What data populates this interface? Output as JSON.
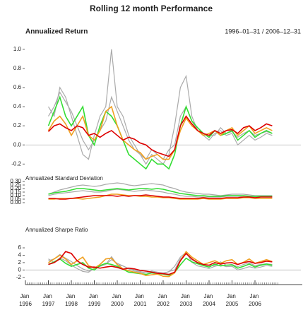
{
  "title": "Rolling 12 month Performance",
  "date_range": "1996–01–31 / 2006–12–31",
  "chart_data": [
    {
      "type": "line",
      "title": "Annualized Return",
      "ylim": [
        -0.27,
        1.05
      ],
      "yticks": [
        -0.2,
        {
          "value": 0,
          "label": "0.0"
        },
        0.2,
        0.4,
        0.6,
        0.8,
        {
          "value": 1,
          "label": "1.0"
        }
      ],
      "reference_line": 0,
      "series": [
        {
          "color": "#aaaaaa",
          "values": [
            null,
            null,
            null,
            null,
            0.4,
            0.3,
            0.6,
            0.5,
            0.3,
            0.1,
            -0.1,
            -0.15,
            0.1,
            0.3,
            0.4,
            1.0,
            0.4,
            0.3,
            0.1,
            0.0,
            -0.1,
            -0.2,
            -0.1,
            -0.15,
            -0.2,
            -0.1,
            0.2,
            0.6,
            0.72,
            0.3,
            0.15,
            0.1,
            0.05,
            0.12,
            0.15,
            0.1,
            0.12,
            0.0,
            0.05,
            0.1,
            0.05,
            0.08,
            0.12,
            0.1
          ]
        },
        {
          "color": "#aaaaaa",
          "values": [
            null,
            null,
            null,
            null,
            0.3,
            0.4,
            0.55,
            0.45,
            0.35,
            0.2,
            0.05,
            -0.05,
            0.05,
            0.15,
            0.25,
            0.5,
            0.35,
            0.2,
            0.05,
            -0.05,
            -0.1,
            -0.15,
            -0.05,
            -0.1,
            -0.15,
            -0.05,
            0.0,
            0.3,
            0.4,
            0.25,
            0.15,
            0.12,
            0.1,
            0.1,
            0.18,
            0.12,
            0.14,
            0.08,
            0.12,
            0.15,
            0.1,
            0.12,
            0.14,
            0.12
          ]
        },
        {
          "color": "#33dd33",
          "values": [
            null,
            null,
            null,
            null,
            0.2,
            0.35,
            0.5,
            0.3,
            0.2,
            0.3,
            0.4,
            0.1,
            0.0,
            0.2,
            0.35,
            0.3,
            0.2,
            0.05,
            -0.1,
            -0.15,
            -0.2,
            -0.25,
            -0.15,
            -0.2,
            -0.2,
            -0.25,
            -0.1,
            0.2,
            0.4,
            0.25,
            0.18,
            0.12,
            0.08,
            0.15,
            0.1,
            0.12,
            0.15,
            0.05,
            0.1,
            0.15,
            0.08,
            0.12,
            0.15,
            0.12
          ]
        },
        {
          "color": "#f0a020",
          "values": [
            null,
            null,
            null,
            null,
            0.15,
            0.25,
            0.3,
            0.22,
            0.1,
            0.2,
            0.3,
            0.1,
            0.05,
            0.15,
            0.35,
            0.4,
            0.2,
            0.05,
            0.0,
            -0.05,
            -0.08,
            -0.15,
            -0.12,
            -0.1,
            -0.15,
            -0.15,
            -0.05,
            0.15,
            0.28,
            0.2,
            0.15,
            0.1,
            0.12,
            0.15,
            0.1,
            0.15,
            0.18,
            0.1,
            0.15,
            0.2,
            0.12,
            0.15,
            0.18,
            0.15
          ]
        },
        {
          "color": "#dd0000",
          "values": [
            null,
            null,
            null,
            null,
            0.14,
            0.2,
            0.22,
            0.18,
            0.15,
            0.2,
            0.18,
            0.1,
            0.12,
            0.08,
            0.12,
            0.15,
            0.1,
            0.05,
            0.08,
            0.06,
            0.02,
            0.0,
            -0.05,
            -0.08,
            -0.1,
            -0.12,
            -0.05,
            0.2,
            0.3,
            0.22,
            0.15,
            0.12,
            0.1,
            0.15,
            0.12,
            0.15,
            0.16,
            0.12,
            0.18,
            0.2,
            0.15,
            0.18,
            0.22,
            0.2
          ]
        }
      ]
    },
    {
      "type": "line",
      "title": "Annualized Standard Deviation",
      "ylim": [
        0,
        0.3
      ],
      "yticks": [
        {
          "value": 0,
          "label": "0.00"
        },
        {
          "value": 0.05,
          "label": "0.05"
        },
        {
          "value": 0.1,
          "label": "0.10"
        },
        {
          "value": 0.15,
          "label": "0.15"
        },
        {
          "value": 0.2,
          "label": "0.20"
        },
        {
          "value": 0.25,
          "label": "0.25"
        },
        {
          "value": 0.3,
          "label": "0.30"
        }
      ],
      "series": [
        {
          "color": "#aaaaaa",
          "values": [
            null,
            null,
            null,
            null,
            0.12,
            0.15,
            0.18,
            0.2,
            0.22,
            0.24,
            0.25,
            0.24,
            0.23,
            0.24,
            0.26,
            0.27,
            0.28,
            0.27,
            0.25,
            0.24,
            0.25,
            0.26,
            0.27,
            0.26,
            0.25,
            0.22,
            0.2,
            0.17,
            0.15,
            0.14,
            0.13,
            0.12,
            0.12,
            0.11,
            0.1,
            0.11,
            0.12,
            0.12,
            0.12,
            0.11,
            0.1,
            0.1,
            0.1,
            0.1
          ]
        },
        {
          "color": "#aaaaaa",
          "values": [
            null,
            null,
            null,
            null,
            0.1,
            0.12,
            0.13,
            0.14,
            0.15,
            0.16,
            0.17,
            0.16,
            0.15,
            0.15,
            0.16,
            0.18,
            0.19,
            0.18,
            0.17,
            0.16,
            0.17,
            0.18,
            0.17,
            0.16,
            0.15,
            0.13,
            0.12,
            0.1,
            0.09,
            0.09,
            0.08,
            0.08,
            0.08,
            0.08,
            0.08,
            0.09,
            0.09,
            0.09,
            0.08,
            0.08,
            0.08,
            0.08,
            0.08,
            0.08
          ]
        },
        {
          "color": "#33dd33",
          "values": [
            null,
            null,
            null,
            null,
            0.12,
            0.14,
            0.15,
            0.16,
            0.18,
            0.2,
            0.2,
            0.19,
            0.18,
            0.17,
            0.18,
            0.19,
            0.2,
            0.19,
            0.18,
            0.19,
            0.2,
            0.2,
            0.19,
            0.2,
            0.19,
            0.17,
            0.15,
            0.13,
            0.12,
            0.11,
            0.1,
            0.1,
            0.09,
            0.09,
            0.09,
            0.1,
            0.1,
            0.1,
            0.1,
            0.09,
            0.09,
            0.09,
            0.09,
            0.09
          ]
        },
        {
          "color": "#f0a020",
          "values": [
            null,
            null,
            null,
            null,
            0.05,
            0.05,
            0.06,
            0.06,
            0.06,
            0.06,
            0.05,
            0.06,
            0.07,
            0.08,
            0.1,
            0.12,
            0.12,
            0.11,
            0.1,
            0.1,
            0.09,
            0.09,
            0.08,
            0.08,
            0.07,
            0.07,
            0.06,
            0.05,
            0.05,
            0.05,
            0.05,
            0.06,
            0.05,
            0.05,
            0.05,
            0.06,
            0.06,
            0.06,
            0.07,
            0.07,
            0.06,
            0.06,
            0.06,
            0.06
          ]
        },
        {
          "color": "#dd0000",
          "values": [
            null,
            null,
            null,
            null,
            0.06,
            0.06,
            0.05,
            0.05,
            0.06,
            0.07,
            0.08,
            0.09,
            0.1,
            0.1,
            0.1,
            0.1,
            0.09,
            0.1,
            0.09,
            0.1,
            0.1,
            0.11,
            0.1,
            0.09,
            0.08,
            0.08,
            0.07,
            0.06,
            0.06,
            0.06,
            0.06,
            0.07,
            0.06,
            0.06,
            0.06,
            0.07,
            0.07,
            0.07,
            0.08,
            0.08,
            0.07,
            0.08,
            0.08,
            0.08
          ]
        }
      ]
    },
    {
      "type": "line",
      "title": "Annualized Sharpe Ratio",
      "ylim": [
        -3,
        6.5
      ],
      "yticks": [
        -2,
        0,
        2,
        4,
        6
      ],
      "reference_line": 0,
      "categories": [
        "Jan 1996",
        null,
        null,
        null,
        "Jan 1997",
        null,
        null,
        null,
        "Jan 1998",
        null,
        null,
        null,
        "Jan 1999",
        null,
        null,
        null,
        "Jan 2000",
        null,
        null,
        null,
        "Jan 2001",
        null,
        null,
        null,
        "Jan 2002",
        null,
        null,
        null,
        "Jan 2003",
        null,
        null,
        null,
        "Jan 2004",
        null,
        null,
        null,
        "Jan 2005",
        null,
        null,
        null,
        "Jan 2006",
        null,
        null,
        null
      ],
      "series": [
        {
          "color": "#aaaaaa",
          "values": [
            null,
            null,
            null,
            null,
            3,
            2,
            3.3,
            2.5,
            1.3,
            0.4,
            -0.4,
            -0.6,
            0.4,
            1.2,
            1.5,
            3.6,
            1.4,
            1.1,
            0.4,
            0,
            -0.4,
            -0.8,
            -0.4,
            -0.6,
            -0.8,
            -0.5,
            1,
            3.5,
            4.8,
            2.1,
            1.1,
            0.8,
            0.4,
            1,
            1.4,
            0.9,
            1,
            0,
            0.4,
            0.9,
            0.5,
            0.8,
            1.2,
            1
          ]
        },
        {
          "color": "#aaaaaa",
          "values": [
            null,
            null,
            null,
            null,
            2.5,
            3,
            4.2,
            3.2,
            2.3,
            1.2,
            0.3,
            -0.3,
            0.3,
            1,
            1.5,
            2.8,
            1.8,
            1.1,
            0.3,
            -0.3,
            -0.6,
            -0.8,
            -0.3,
            -0.6,
            -1,
            -0.4,
            0,
            3,
            4.4,
            2.8,
            1.9,
            1.5,
            1.2,
            1.2,
            2.2,
            1.3,
            1.5,
            0.9,
            1.5,
            1.9,
            1.2,
            1.5,
            1.7,
            1.5
          ]
        },
        {
          "color": "#33dd33",
          "values": [
            null,
            null,
            null,
            null,
            1.5,
            2.2,
            3,
            1.8,
            1,
            1.5,
            2,
            0.5,
            0,
            1.2,
            1.8,
            1.5,
            1,
            0.2,
            -0.6,
            -0.8,
            -1,
            -1.2,
            -0.8,
            -1,
            -1.1,
            -1.4,
            -0.7,
            1.4,
            3.2,
            2.2,
            1.7,
            1.2,
            0.8,
            1.6,
            1.1,
            1.3,
            1.4,
            0.5,
            1,
            1.6,
            0.8,
            1.3,
            1.6,
            1.3
          ]
        },
        {
          "color": "#f0a020",
          "values": [
            null,
            null,
            null,
            null,
            2,
            3,
            4,
            3,
            1.5,
            2.5,
            3.5,
            1.2,
            0.5,
            1.5,
            3,
            3.2,
            1.5,
            0.3,
            -0.2,
            -0.6,
            -0.9,
            -1.5,
            -1.3,
            -1.1,
            -1.7,
            -1.8,
            -0.8,
            2.5,
            5,
            3.5,
            2.5,
            1.5,
            2,
            2.5,
            1.8,
            2.5,
            2.8,
            1.5,
            2.1,
            3,
            1.8,
            2.3,
            2.8,
            2.3
          ]
        },
        {
          "color": "#dd0000",
          "values": [
            null,
            null,
            null,
            null,
            1.5,
            2,
            3,
            5,
            4.5,
            2.5,
            1.5,
            0.8,
            0.8,
            0.5,
            0.8,
            1,
            0.7,
            0.2,
            0.5,
            0.3,
            -0.1,
            -0.3,
            -0.6,
            -0.9,
            -1,
            -1.2,
            -0.6,
            2.5,
            4.5,
            3,
            2,
            1.5,
            1.3,
            2,
            1.6,
            1.9,
            2,
            1.5,
            2,
            2.3,
            1.8,
            2,
            2.4,
            2.2
          ]
        }
      ]
    }
  ]
}
